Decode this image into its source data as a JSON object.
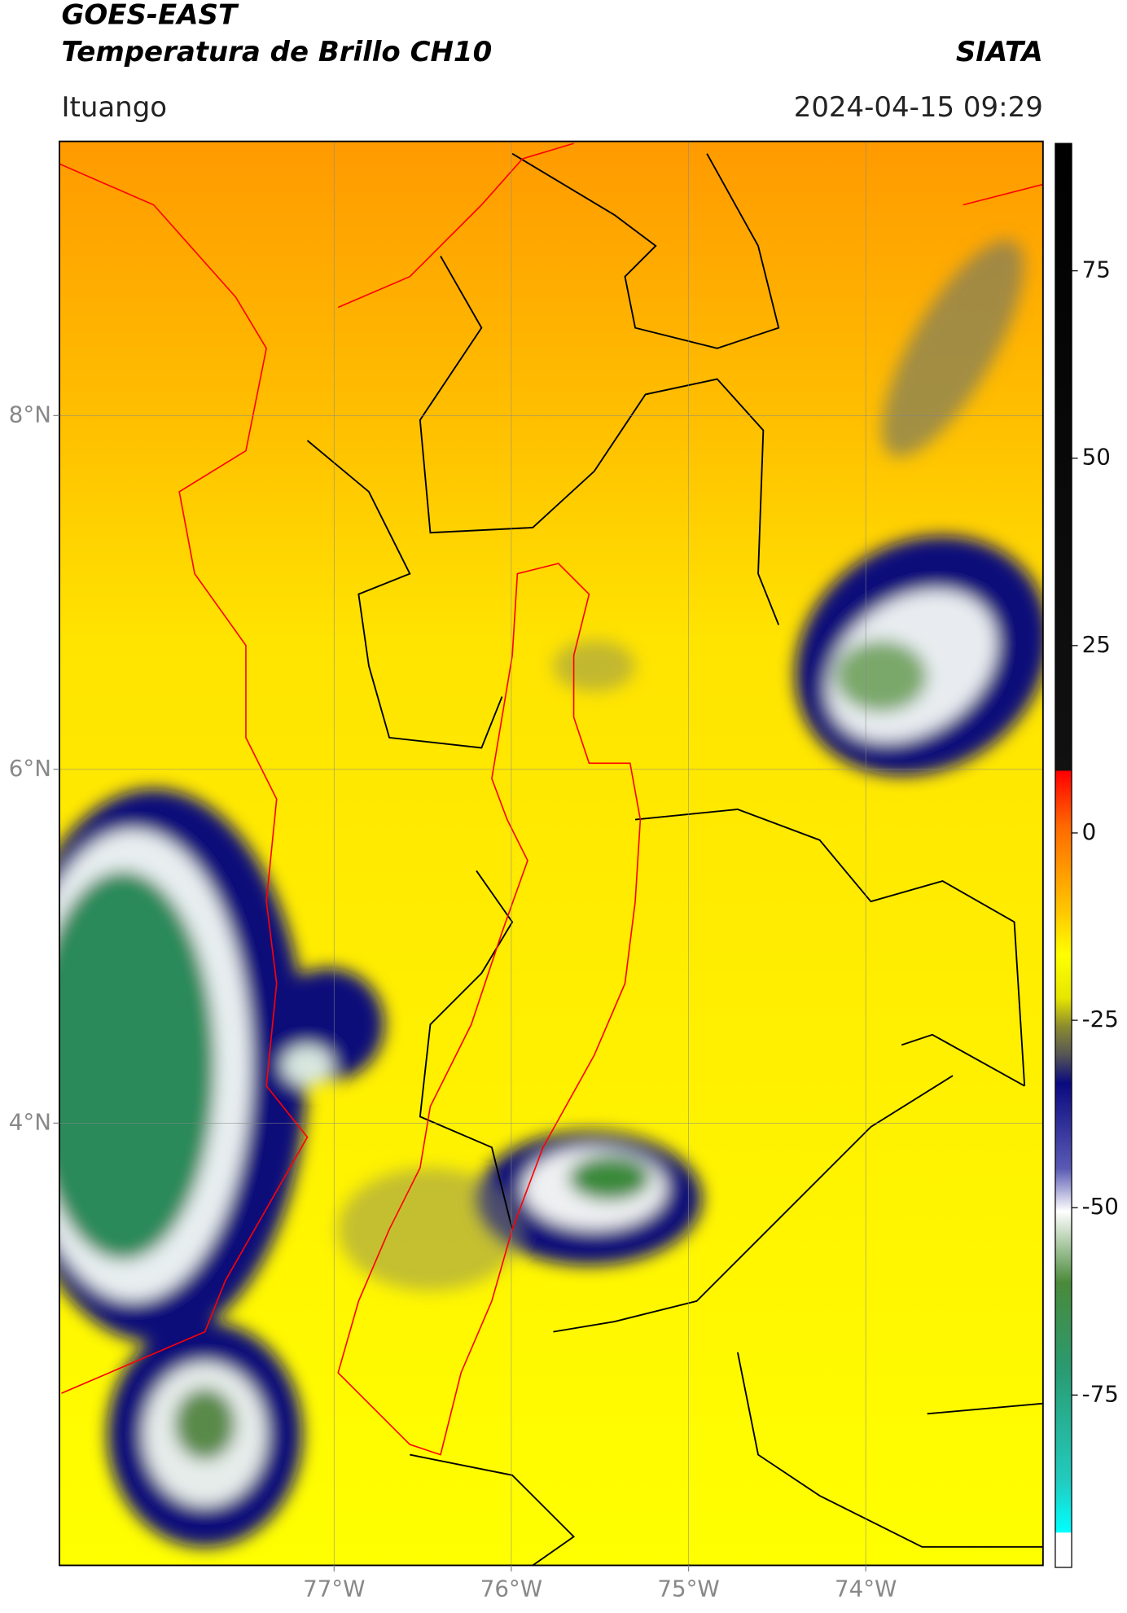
{
  "header": {
    "title": "GOES-EAST",
    "subtitle": "Temperatura de Brillo CH10",
    "brand": "SIATA",
    "location": "Ituango",
    "datetime": "2024-04-15 09:29"
  },
  "map": {
    "xlim": [
      -78.55,
      -73.0
    ],
    "ylim": [
      1.5,
      9.55
    ],
    "lat_ticks": [
      {
        "value": 8,
        "label": "8°N"
      },
      {
        "value": 6,
        "label": "6°N"
      },
      {
        "value": 4,
        "label": "4°N"
      }
    ],
    "lon_ticks": [
      {
        "value": -77,
        "label": "77°W"
      },
      {
        "value": -76,
        "label": "76°W"
      },
      {
        "value": -75,
        "label": "75°W"
      },
      {
        "value": -74,
        "label": "74°W"
      }
    ],
    "grid": true
  },
  "colorbar": {
    "lim": [
      -98,
      92
    ],
    "ticks": [
      75,
      50,
      25,
      0,
      -25,
      -50,
      -75
    ]
  }
}
